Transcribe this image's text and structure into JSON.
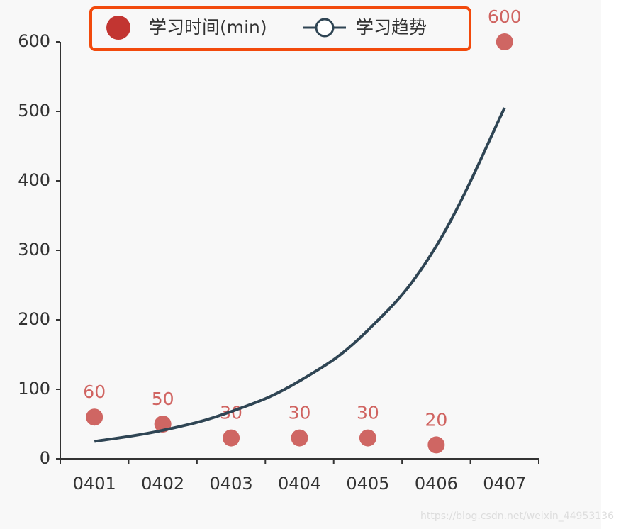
{
  "chart_data": {
    "type": "scatter",
    "categories": [
      "0401",
      "0402",
      "0403",
      "0404",
      "0405",
      "0406",
      "0407"
    ],
    "series": [
      {
        "name": "学习时间(min)",
        "type": "scatter",
        "color": "#c23531",
        "values": [
          60,
          50,
          30,
          30,
          30,
          20,
          600
        ]
      },
      {
        "name": "学习趋势",
        "type": "line",
        "color": "#2f4554",
        "values": [
          25,
          41,
          68,
          112,
          185,
          306,
          505
        ]
      }
    ],
    "ylim": [
      0,
      600
    ],
    "yticks": [
      0,
      100,
      200,
      300,
      400,
      500,
      600
    ],
    "watermark": "https://blog.csdn.net/weixin_44953136"
  }
}
